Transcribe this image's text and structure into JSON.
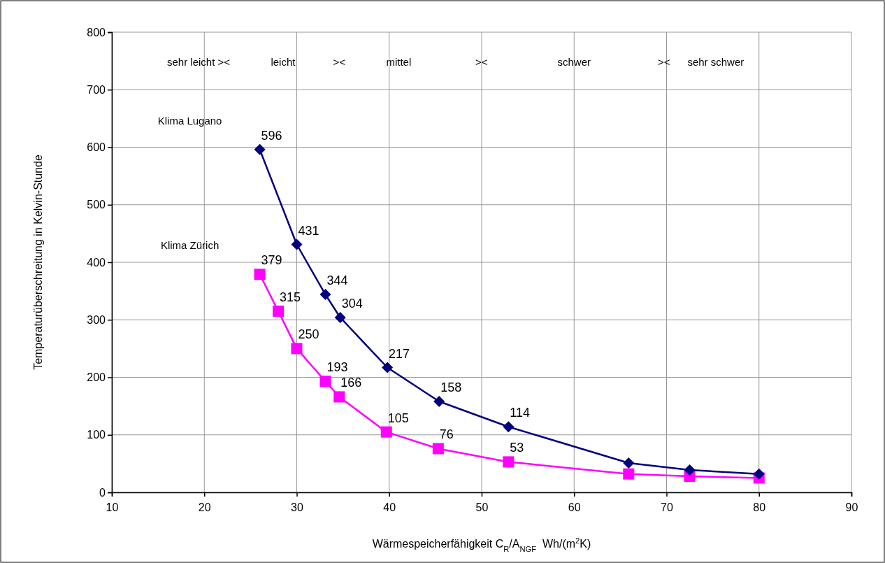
{
  "chart_data": {
    "type": "line",
    "xlabel": "Wärmespeicherfähigkeit C$_{R}$/A$_{NGF}$  Wh/(m$^{2}$K)",
    "ylabel": "Temperaturüberschreitung in Kelvin-Stunde",
    "xlim": [
      10,
      90
    ],
    "xticks": [
      10,
      20,
      30,
      40,
      50,
      60,
      70,
      80,
      90
    ],
    "ylim": [
      0,
      800
    ],
    "yticks": [
      0,
      100,
      200,
      300,
      400,
      500,
      600,
      700,
      800
    ],
    "grid": true,
    "series": [
      {
        "color": "#000080",
        "marker": "diamond",
        "x": [
          26,
          30,
          33.1,
          34.7,
          39.8,
          45.4,
          52.9,
          65.9,
          72.5,
          80
        ],
        "values": [
          596,
          431,
          344,
          304,
          217,
          158,
          114,
          51,
          39,
          32
        ],
        "value_labels": [
          "596",
          "431",
          "344",
          "304",
          "217",
          "158",
          "114",
          null,
          null,
          null
        ]
      },
      {
        "color": "#ff00ff",
        "marker": "square",
        "x": [
          26,
          28,
          30,
          33.1,
          34.6,
          39.7,
          45.3,
          52.9,
          65.9,
          72.5,
          80
        ],
        "values": [
          379,
          315,
          250,
          193,
          166,
          105,
          76,
          53,
          32,
          28,
          25
        ],
        "value_labels": [
          "379",
          "315",
          "250",
          "193",
          "166",
          "105",
          "76",
          "53",
          null,
          null,
          null
        ]
      }
    ],
    "annotations": [
      "sehr leicht ><              leicht             ><              mittel                      ><                        schwer                       ><      sehr schwer",
      "Klima Lugano",
      "Klima Zürich"
    ]
  }
}
